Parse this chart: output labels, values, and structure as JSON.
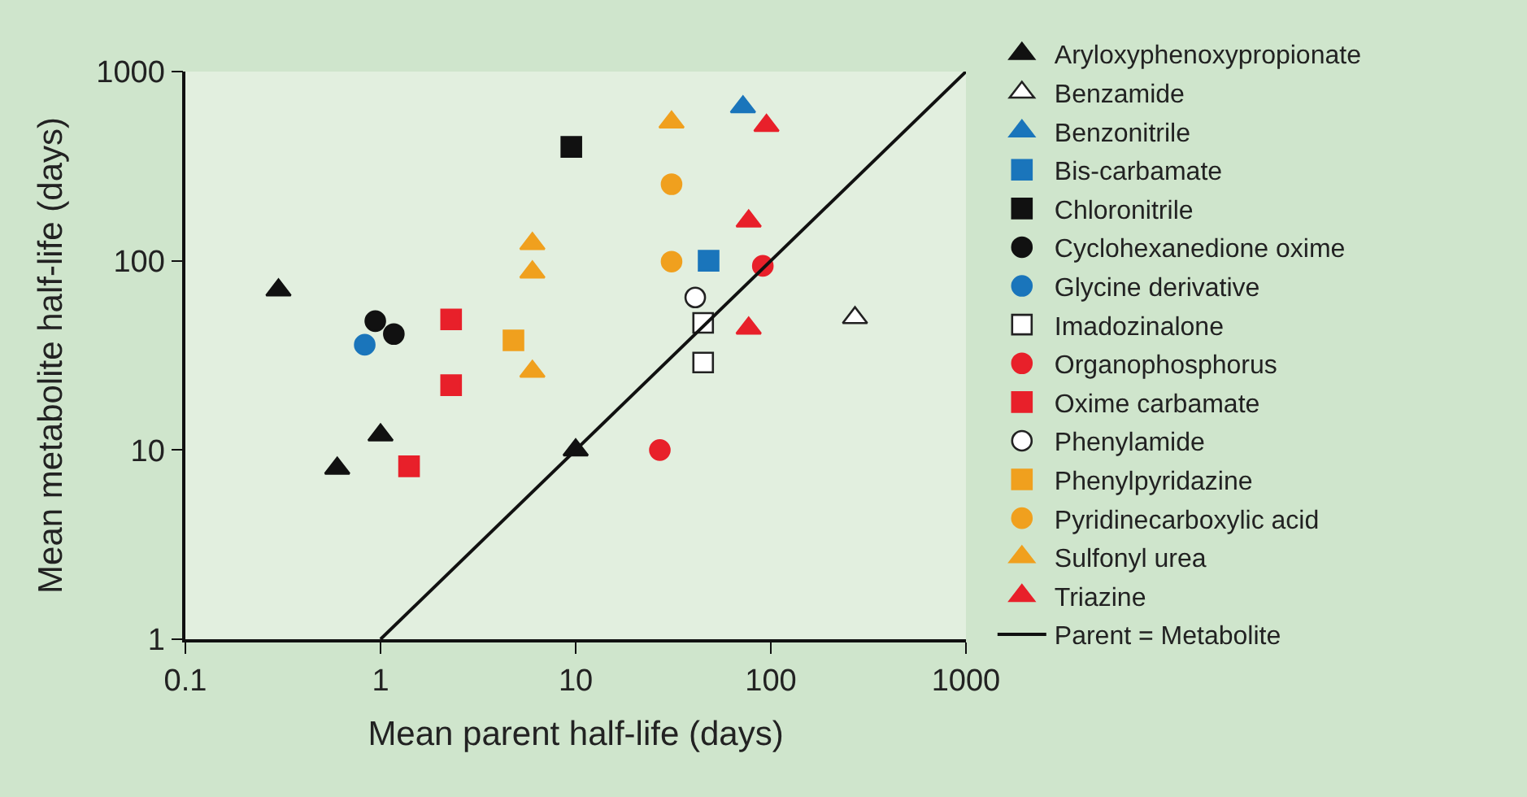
{
  "chart_data": {
    "type": "scatter",
    "xlabel": "Mean parent half-life (days)",
    "ylabel": "Mean metabolite half-life (days)",
    "log": "xy",
    "grid": false,
    "legend": "right",
    "xlim": [
      0.1,
      1000
    ],
    "xticks": [
      0.1,
      1,
      10,
      100,
      1000
    ],
    "ylim": [
      1,
      1000
    ],
    "yticks": [
      1,
      10,
      100,
      1000
    ],
    "series": [
      {
        "name": "Aryloxyphenoxypropionate",
        "color": "#111111",
        "marker": "triangle",
        "x": [
          0.3,
          1,
          0.6,
          10
        ],
        "values": [
          70,
          12,
          8,
          10
        ]
      },
      {
        "name": "Benzamide",
        "color": "#ffffff",
        "marker": "triangle",
        "x": [
          270
        ],
        "values": [
          50
        ]
      },
      {
        "name": "Benzonitrile",
        "color": "#1a75bb",
        "marker": "triangle",
        "x": [
          72
        ],
        "values": [
          650
        ]
      },
      {
        "name": "Bis-carbamate",
        "color": "#1a75bb",
        "marker": "square",
        "x": [
          48
        ],
        "values": [
          100
        ]
      },
      {
        "name": "Chloronitrile",
        "color": "#111111",
        "marker": "square",
        "x": [
          9.5
        ],
        "values": [
          400
        ]
      },
      {
        "name": "Cyclohexanedione oxime",
        "color": "#111111",
        "marker": "circle",
        "x": [
          0.94,
          1.17
        ],
        "values": [
          48,
          41
        ]
      },
      {
        "name": "Glycine derivative",
        "color": "#1a75bb",
        "marker": "circle",
        "x": [
          0.83
        ],
        "values": [
          36
        ]
      },
      {
        "name": "Imadozinalone",
        "color": "#ffffff",
        "marker": "square",
        "x": [
          45,
          45
        ],
        "values": [
          47,
          29
        ]
      },
      {
        "name": "Organophosphorus",
        "color": "#e8202a",
        "marker": "circle",
        "x": [
          91,
          27
        ],
        "values": [
          94,
          10
        ]
      },
      {
        "name": "Oxime carbamate",
        "color": "#e8202a",
        "marker": "square",
        "x": [
          2.3,
          2.3,
          1.4
        ],
        "values": [
          49,
          22,
          8.2
        ]
      },
      {
        "name": "Phenylamide",
        "color": "#ffffff",
        "marker": "circle",
        "x": [
          41
        ],
        "values": [
          64
        ]
      },
      {
        "name": "Phenylpyridazine",
        "color": "#f0a01e",
        "marker": "square",
        "x": [
          4.8
        ],
        "values": [
          38
        ]
      },
      {
        "name": "Pyridinecarboxylic acid",
        "color": "#f0a01e",
        "marker": "circle",
        "x": [
          31,
          31
        ],
        "values": [
          254,
          99
        ]
      },
      {
        "name": "Sulfonyl urea",
        "color": "#f0a01e",
        "marker": "triangle",
        "x": [
          31,
          6,
          6,
          6
        ],
        "values": [
          540,
          123,
          87,
          26
        ]
      },
      {
        "name": "Triazine",
        "color": "#e8202a",
        "marker": "triangle",
        "x": [
          95,
          77,
          77
        ],
        "values": [
          518,
          162,
          44
        ]
      },
      {
        "name": "Parent = Metabolite",
        "type": "line",
        "color": "#111111",
        "marker": "none",
        "line_style": "solid",
        "x": [
          1,
          1000
        ],
        "values": [
          1,
          1000
        ]
      }
    ]
  }
}
